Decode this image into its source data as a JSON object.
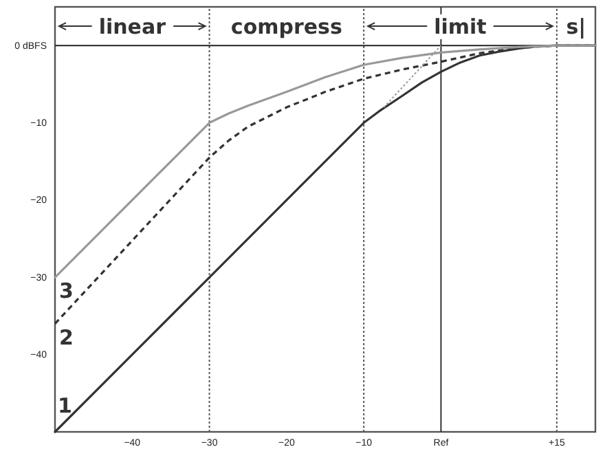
{
  "chart_data": {
    "type": "line",
    "xlim": [
      -50,
      20
    ],
    "ylim": [
      -50,
      5
    ],
    "xticks": [
      -40,
      -30,
      -20,
      -10,
      {
        "value": 0,
        "label": "Ref"
      },
      {
        "value": 15,
        "label": "+15"
      }
    ],
    "yticks": [
      {
        "value": 0,
        "label": "0 dBFS"
      },
      -10,
      -20,
      -30,
      -40
    ],
    "grid": false,
    "legend": false,
    "series": [
      {
        "name": "1",
        "color": "#333333",
        "line_style": "solid",
        "x": [
          -50,
          -30,
          -10,
          -8,
          -5,
          -2.5,
          0,
          2.5,
          5,
          7.5,
          10,
          12.5,
          15,
          20
        ],
        "values": [
          -50,
          -30,
          -10,
          -8.5,
          -6.5,
          -4.8,
          -3.4,
          -2.2,
          -1.3,
          -0.8,
          -0.4,
          -0.1,
          0,
          0
        ]
      },
      {
        "name": "2",
        "color": "#333333",
        "line_style": "dashed",
        "x": [
          -50,
          -30,
          -27.5,
          -25,
          -20,
          -15,
          -10,
          -5,
          0,
          5,
          10,
          15,
          20
        ],
        "values": [
          -36,
          -14.5,
          -12.3,
          -10.5,
          -8,
          -6,
          -4.3,
          -3.1,
          -2.1,
          -1,
          -0.3,
          0,
          0
        ]
      },
      {
        "name": "3",
        "color": "#999999",
        "line_style": "solid",
        "x": [
          -50,
          -30,
          -27.5,
          -25,
          -20,
          -15,
          -10,
          -5,
          0,
          5,
          10,
          15,
          20
        ],
        "values": [
          -30,
          -10,
          -8.8,
          -7.8,
          -6,
          -4.1,
          -2.5,
          -1.6,
          -0.9,
          -0.5,
          -0.2,
          0,
          0
        ]
      },
      {
        "color": "#999999",
        "line_style": "dotted",
        "x": [
          -7.4,
          0
        ],
        "values": [
          -8,
          0
        ]
      }
    ],
    "ref_lines": [
      {
        "axis": "x",
        "value": -30,
        "line_style": "dotted",
        "color": "#555555"
      },
      {
        "axis": "x",
        "value": -10,
        "line_style": "dotted",
        "color": "#555555"
      },
      {
        "axis": "x",
        "value": 0,
        "line_style": "solid",
        "color": "#333333"
      },
      {
        "axis": "x",
        "value": 15,
        "line_style": "dotted",
        "color": "#555555"
      },
      {
        "axis": "y",
        "value": 0,
        "line_style": "solid",
        "color": "#222222"
      }
    ],
    "annotations": [
      "linear",
      "compress",
      "limit",
      "s|"
    ]
  }
}
